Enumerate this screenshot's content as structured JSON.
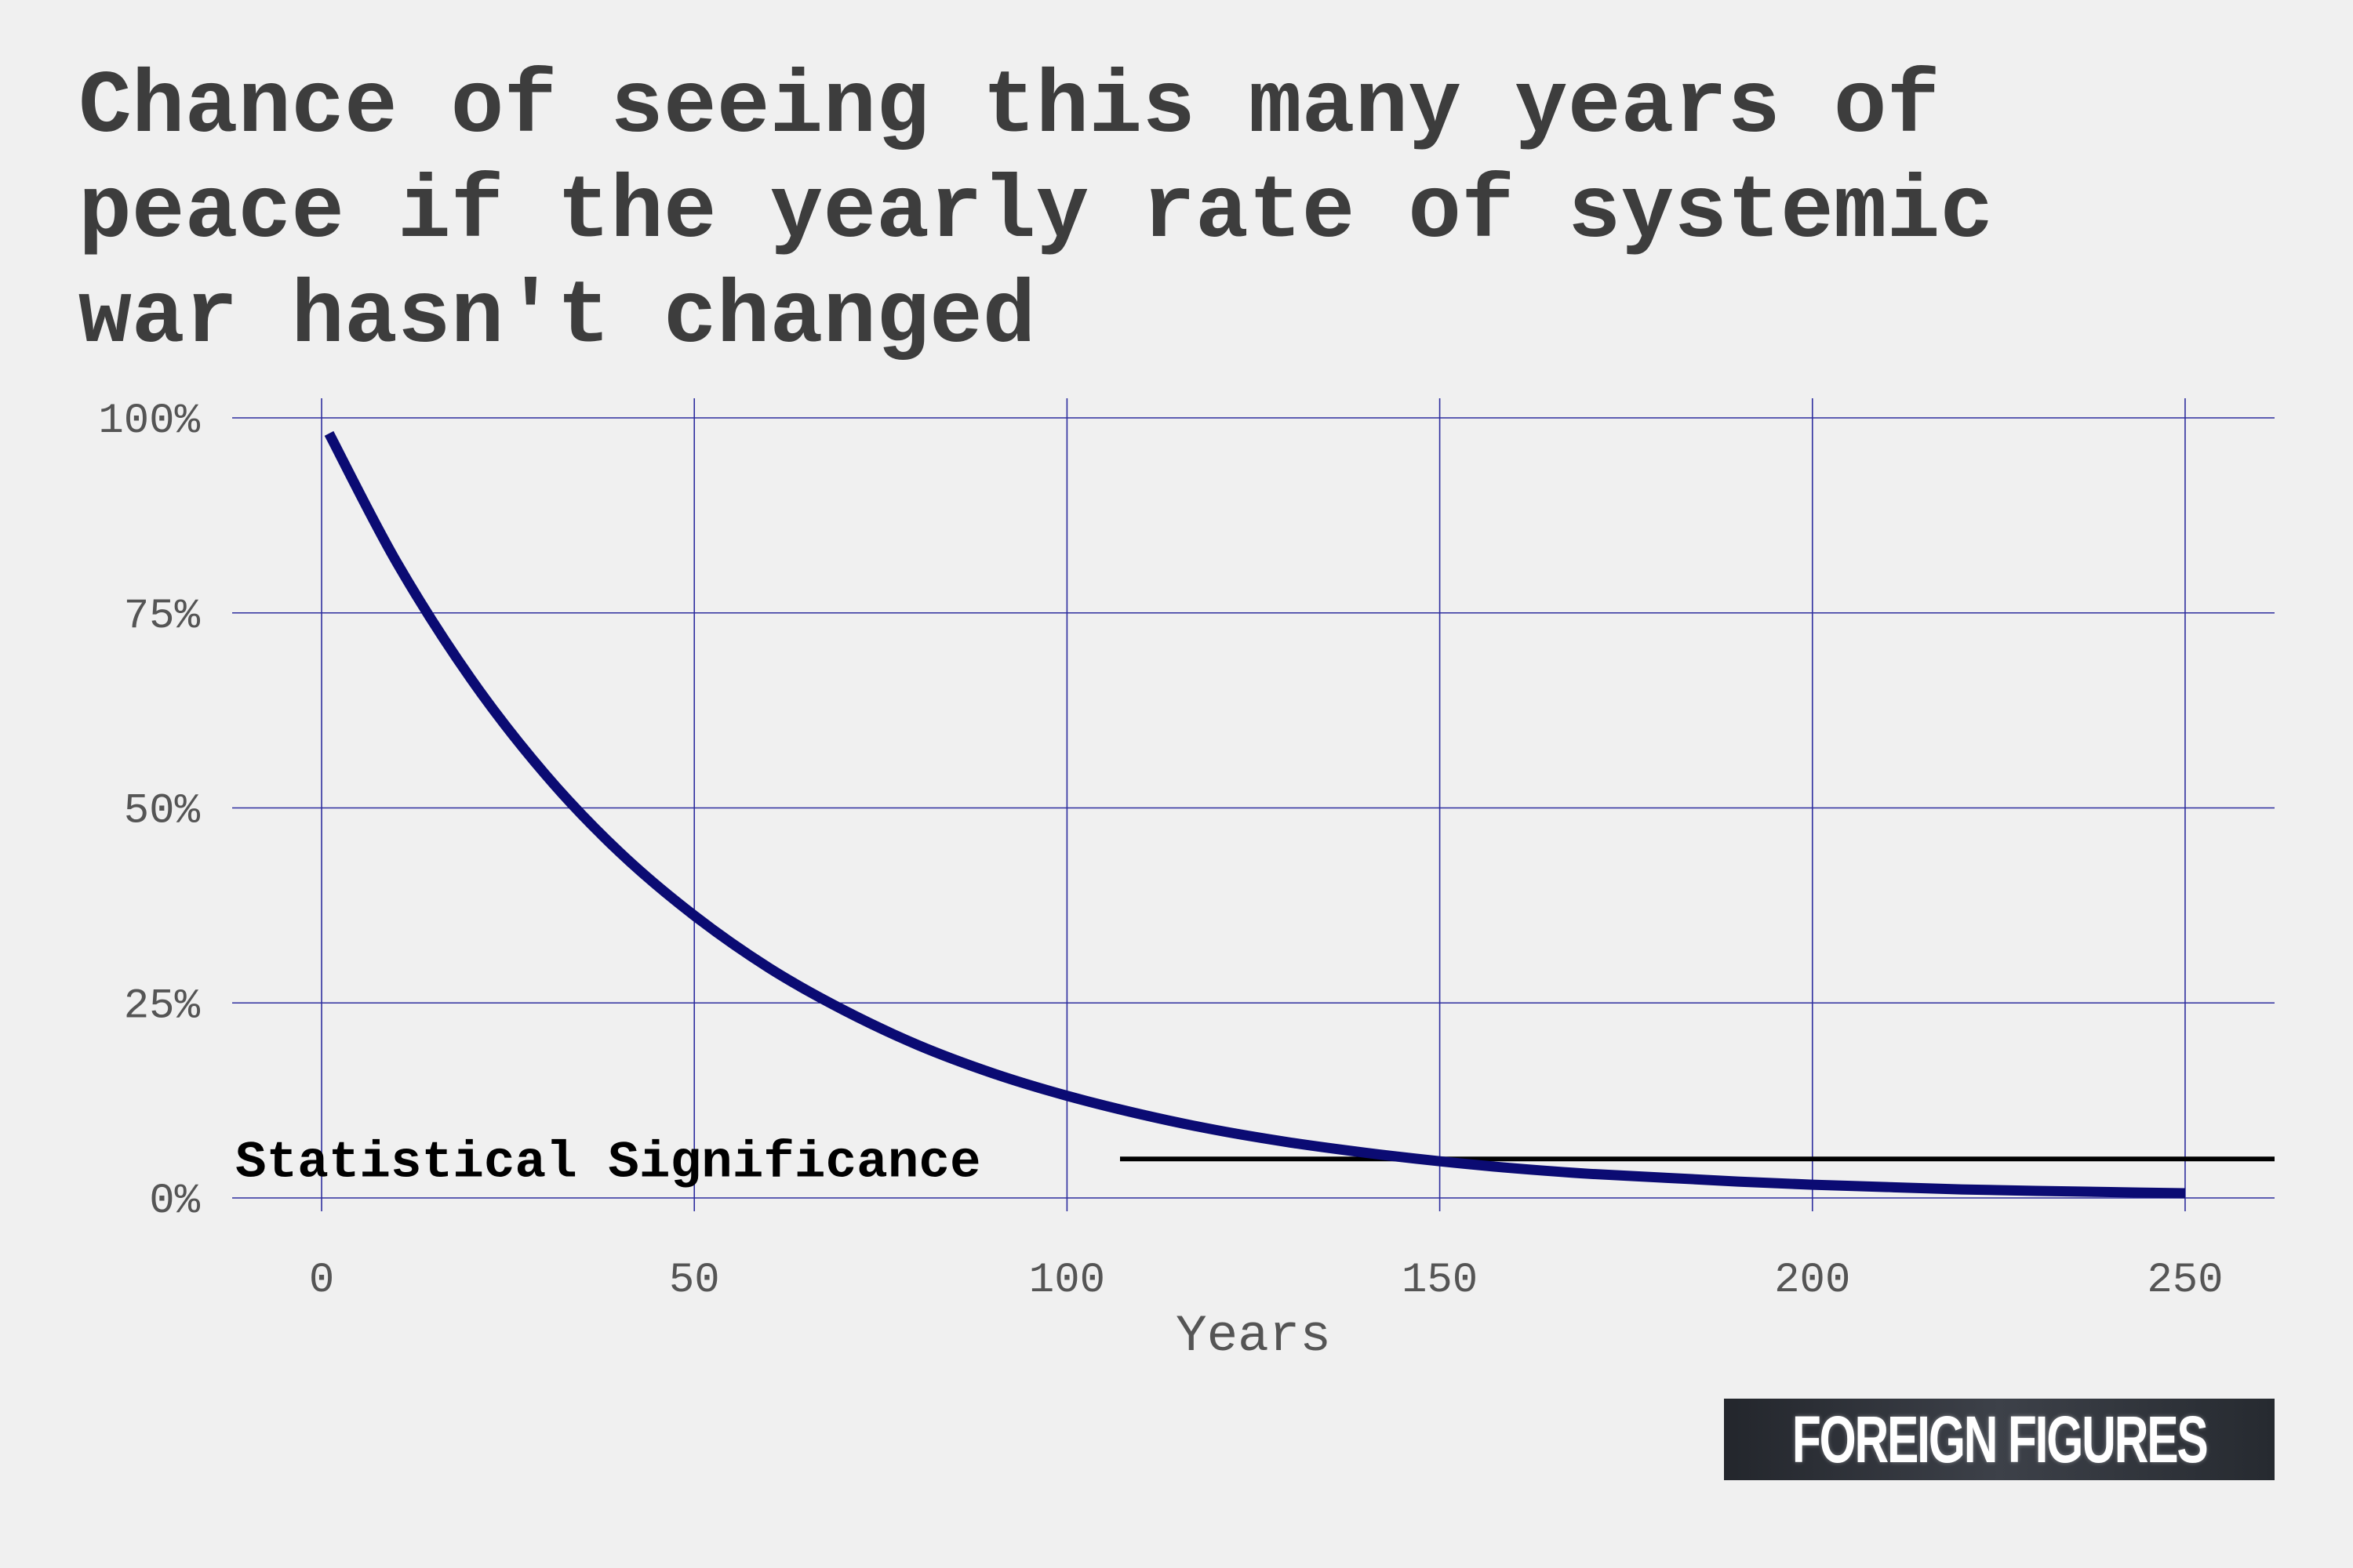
{
  "colors": {
    "background": "#f0f0f0",
    "title": "#3d3d3d",
    "grid": "#2e2e9e",
    "curve": "#0b0b73",
    "threshold": "#000000",
    "tick_text": "#555555",
    "logo_background": "#2f333a",
    "logo_text": "#ffffff"
  },
  "chart_data": {
    "type": "line",
    "title": "Chance of seeing this many years of peace if the yearly rate of systemic war hasn't changed",
    "xlabel": "Years",
    "ylabel": "",
    "xlim": [
      -12,
      262
    ],
    "ylim": [
      0,
      1
    ],
    "x_ticks": [
      0,
      50,
      100,
      150,
      200,
      250
    ],
    "x_tick_labels": [
      "0",
      "50",
      "100",
      "150",
      "200",
      "250"
    ],
    "y_ticks": [
      0,
      0.25,
      0.5,
      0.75,
      1
    ],
    "y_tick_labels": [
      "0%",
      "25%",
      "50%",
      "75%",
      "100%"
    ],
    "grid": true,
    "legend": "none",
    "series": [
      {
        "x": [
          1,
          10,
          20,
          30,
          40,
          50,
          60,
          70,
          80,
          90,
          100,
          110,
          120,
          130,
          140,
          150,
          160,
          170,
          180,
          190,
          200,
          210,
          220,
          230,
          240,
          250
        ],
        "values": [
          0.98,
          0.816,
          0.666,
          0.543,
          0.443,
          0.362,
          0.295,
          0.241,
          0.196,
          0.16,
          0.131,
          0.107,
          0.087,
          0.071,
          0.058,
          0.047,
          0.038,
          0.031,
          0.026,
          0.021,
          0.017,
          0.014,
          0.011,
          0.009,
          0.0075,
          0.006
        ]
      }
    ],
    "threshold": {
      "label": "Statistical Significance",
      "value": 0.05
    }
  },
  "logo": {
    "text": "FOREIGN FIGURES"
  }
}
